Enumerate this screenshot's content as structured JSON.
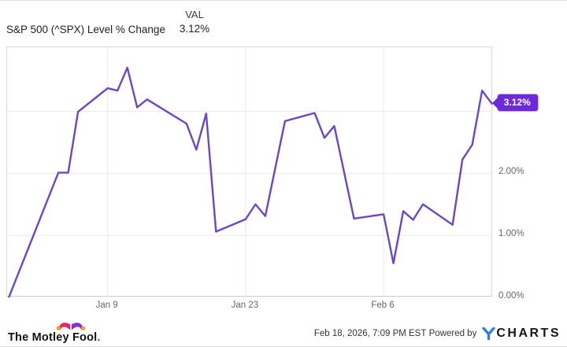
{
  "header": {
    "title": "S&P 500 (^SPX) Level % Change",
    "val_label": "VAL",
    "val_value": "3.12%"
  },
  "chart_data": {
    "type": "line",
    "title": "S&P 500 (^SPX) Level % Change",
    "xlabel": "",
    "ylabel": "% change",
    "x_unit": "calendar day offset from chart start (late Dec)",
    "xlim": [
      -0.2,
      49.1
    ],
    "ylim": [
      0,
      4.03
    ],
    "grid": true,
    "legend": "none",
    "x_ticks": [
      {
        "d": 10,
        "label": "Jan 9"
      },
      {
        "d": 24,
        "label": "Jan 23"
      },
      {
        "d": 38,
        "label": "Feb 6"
      }
    ],
    "y_ticks": [
      {
        "v": 0,
        "label": "0.00%",
        "hidden": false
      },
      {
        "v": 1,
        "label": "1.00%",
        "hidden": false
      },
      {
        "v": 2,
        "label": "2.00%",
        "hidden": false
      },
      {
        "v": 3,
        "label": "3.00%",
        "hidden": true
      }
    ],
    "series": [
      {
        "name": "S&P 500 (^SPX) Level % Change",
        "color": "#6b46c8",
        "points": [
          [
            0,
            0.01
          ],
          [
            5,
            2.01
          ],
          [
            6,
            2.01
          ],
          [
            7,
            2.99
          ],
          [
            10,
            3.37
          ],
          [
            11,
            3.33
          ],
          [
            12,
            3.7
          ],
          [
            13,
            3.06
          ],
          [
            14,
            3.19
          ],
          [
            18,
            2.8
          ],
          [
            19,
            2.38
          ],
          [
            20,
            2.96
          ],
          [
            21,
            1.06
          ],
          [
            24,
            1.26
          ],
          [
            25,
            1.5
          ],
          [
            26,
            1.31
          ],
          [
            28,
            2.84
          ],
          [
            31,
            2.97
          ],
          [
            32,
            2.57
          ],
          [
            33,
            2.76
          ],
          [
            35,
            1.27
          ],
          [
            38,
            1.34
          ],
          [
            39,
            0.55
          ],
          [
            40,
            1.39
          ],
          [
            41,
            1.25
          ],
          [
            42,
            1.5
          ],
          [
            45,
            1.17
          ],
          [
            46,
            2.22
          ],
          [
            47,
            2.46
          ],
          [
            48,
            3.33
          ],
          [
            49,
            3.12
          ]
        ]
      }
    ],
    "last_value_label": "3.12%",
    "badge_color": "#6d28d9"
  },
  "footer": {
    "fool_text": "The Motley Fool",
    "fool_period": ".",
    "timestamp": "Feb 18, 2026, 7:09 PM EST",
    "powered_by": "Powered by",
    "ycharts_word": "CHARTS"
  }
}
